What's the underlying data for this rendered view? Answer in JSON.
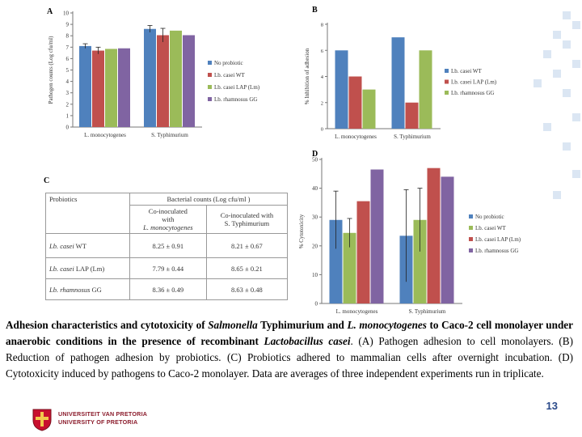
{
  "colors": {
    "blue": "#4f81bd",
    "red": "#c0504d",
    "green": "#9bbb59",
    "purple": "#8064a2",
    "accent": "#1f4e8c"
  },
  "figure": {
    "labels": {
      "a": "A",
      "b": "B",
      "c": "C",
      "d": "D"
    }
  },
  "chart_data": [
    {
      "id": "A",
      "type": "bar",
      "ylabel": "Pathogen counts (Log cfu/ml)",
      "ylim": [
        0,
        10
      ],
      "yticks": [
        0,
        1,
        2,
        3,
        4,
        5,
        6,
        7,
        8,
        9,
        10
      ],
      "categories": [
        "L. monocytogenes",
        "S. Typhimurium"
      ],
      "series": [
        {
          "name": "No probiotic",
          "color": "#4f81bd",
          "values": [
            7.1,
            8.6
          ],
          "errors": [
            0.2,
            0.3
          ]
        },
        {
          "name": "Lb. casei WT",
          "color": "#c0504d",
          "values": [
            6.7,
            8.05
          ],
          "errors": [
            0.3,
            0.6
          ]
        },
        {
          "name": "Lb. casei LAP (Lm)",
          "color": "#9bbb59",
          "values": [
            6.85,
            8.45
          ],
          "errors": [
            0,
            0
          ]
        },
        {
          "name": "Lb. rhamnosus GG",
          "color": "#8064a2",
          "values": [
            6.9,
            8.05
          ],
          "errors": [
            0,
            0
          ]
        }
      ]
    },
    {
      "id": "B",
      "type": "bar",
      "ylabel": "% Inhibition of adhesion",
      "ylim": [
        0,
        8
      ],
      "yticks": [
        0,
        2,
        4,
        6,
        8
      ],
      "categories": [
        "L. monocytogenes",
        "S. Typhimurium"
      ],
      "series": [
        {
          "name": "Lb. casei WT",
          "color": "#4f81bd",
          "values": [
            6,
            7
          ]
        },
        {
          "name": "Lb. casei LAP (Lm)",
          "color": "#c0504d",
          "values": [
            4,
            2
          ]
        },
        {
          "name": "Lb. rhamnosus GG",
          "color": "#9bbb59",
          "values": [
            3,
            6
          ]
        }
      ]
    },
    {
      "id": "D",
      "type": "bar",
      "ylabel": "% Cytotoxicity",
      "ylim": [
        0,
        50
      ],
      "yticks": [
        0,
        10,
        20,
        30,
        40,
        50
      ],
      "categories": [
        "L. monocytogenes",
        "S. Typhimurium"
      ],
      "series": [
        {
          "name": "No probiotic",
          "color": "#4f81bd",
          "values": [
            29,
            23.5
          ],
          "errors": [
            10,
            16
          ]
        },
        {
          "name": "Lb. casei WT",
          "color": "#9bbb59",
          "values": [
            24.5,
            29
          ],
          "errors": [
            5,
            11
          ]
        },
        {
          "name": "Lb. casei LAP (Lm)",
          "color": "#c0504d",
          "values": [
            35.5,
            47
          ],
          "errors": [
            0,
            0
          ]
        },
        {
          "name": "Lb. rhamnosus GG",
          "color": "#8064a2",
          "values": [
            46.5,
            44
          ],
          "errors": [
            0,
            0
          ]
        }
      ]
    },
    {
      "id": "C",
      "type": "table",
      "header": {
        "col1": "Probiotics",
        "group": "Bacterial counts (Log cfu/ml )",
        "sub1_line1": "Co-inoculated",
        "sub1_line2": "with ",
        "sub1_italic": "L. monocytogenes",
        "sub2_line1": "Co-inoculated   with ",
        "sub2_tail": "S. Typhimurium"
      },
      "rows": [
        {
          "genus": "Lb. casei",
          "strain": " WT",
          "val1": "8.25 ± 0.91",
          "val2": "8.21 ± 0.67"
        },
        {
          "genus": "Lb. casei",
          "strain": " LAP (Lm)",
          "val1": "7.79 ± 0.44",
          "val2": "8.65 ± 0.21"
        },
        {
          "genus": "Lb. rhamnosus",
          "strain": " GG",
          "val1": "8.36 ± 0.49",
          "val2": "8.63 ± 0.48"
        }
      ]
    }
  ],
  "caption": {
    "p1": "Adhesion characteristics and cytotoxicity of ",
    "p2": "Salmonella",
    "p3": " Typhimurium and ",
    "p4": "L. monocytogenes",
    "p5": " to Caco-2 cell monolayer under anaerobic conditions in the presence of recombinant ",
    "p6": "Lactobacillus casei",
    "p7": ". (A) Pathogen adhesion to cell monolayers. (B) Reduction of pathogen adhesion by probiotics. (C) Probiotics adhered to mammalian cells after overnight incubation. (D) Cytotoxicity induced by pathogens to Caco-2 monolayer. Data are averages of three independent experiments run in triplicate."
  },
  "footer": {
    "page_number": "13",
    "logo_line1": "UNIVERSITEIT VAN PRETORIA",
    "logo_line2": "UNIVERSITY OF PRETORIA"
  }
}
